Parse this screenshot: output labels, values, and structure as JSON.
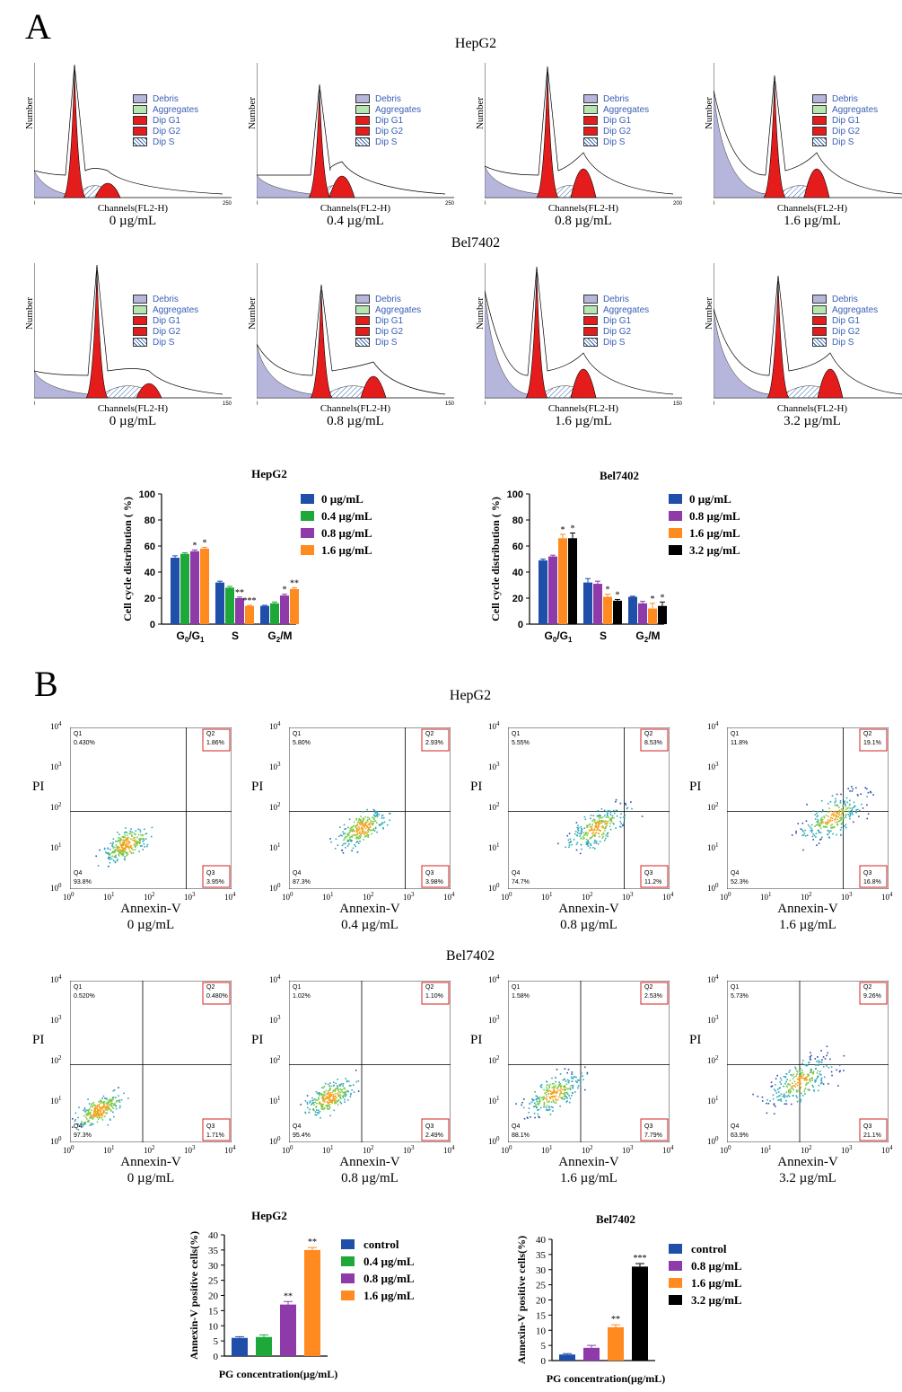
{
  "panelA": {
    "letter": "A",
    "rows": [
      {
        "title": "HepG2",
        "histograms": [
          {
            "caption": "0 µg/mL",
            "xlabel": "Channels(FL2-H)",
            "ylabel": "Number",
            "xmax_tick": "250"
          },
          {
            "caption": "0.4 µg/mL",
            "xlabel": "Channels(FL2-H)",
            "ylabel": "Number",
            "xmax_tick": "250"
          },
          {
            "caption": "0.8 µg/mL",
            "xlabel": "Channels(FL2-H)",
            "ylabel": "Number",
            "xmax_tick": "200"
          },
          {
            "caption": "1.6 µg/mL",
            "xlabel": "Channels(FL2-H)",
            "ylabel": "Number",
            "xmax_tick": "150"
          }
        ]
      },
      {
        "title": "Bel7402",
        "histograms": [
          {
            "caption": "0 µg/mL",
            "xlabel": "Channels(FL2-H)",
            "ylabel": "Number",
            "xmax_tick": "150"
          },
          {
            "caption": "0.8 µg/mL",
            "xlabel": "Channels(FL2-H)",
            "ylabel": "Number",
            "xmax_tick": "150"
          },
          {
            "caption": "1.6 µg/mL",
            "xlabel": "Channels(FL2-H)",
            "ylabel": "Number",
            "xmax_tick": "150"
          },
          {
            "caption": "3.2 µg/mL",
            "xlabel": "Channels(FL2-H)",
            "ylabel": "Number",
            "xmax_tick": "150"
          }
        ]
      }
    ],
    "legend": [
      "Debris",
      "Aggregates",
      "Dip G1",
      "Dip G2",
      "Dip S"
    ]
  },
  "panelB": {
    "letter": "B",
    "rows": [
      {
        "title": "HepG2",
        "plots": [
          {
            "caption": "0 µg/mL",
            "q1": "0.430%",
            "q2": "1.86%",
            "q3": "3.95%",
            "q4": "93.8%"
          },
          {
            "caption": "0.4 µg/mL",
            "q1": "5.80%",
            "q2": "2.93%",
            "q3": "3.98%",
            "q4": "87.3%"
          },
          {
            "caption": "0.8 µg/mL",
            "q1": "5.55%",
            "q2": "8.53%",
            "q3": "11.2%",
            "q4": "74.7%"
          },
          {
            "caption": "1.6 µg/mL",
            "q1": "11.8%",
            "q2": "19.1%",
            "q3": "16.8%",
            "q4": "52.3%"
          }
        ]
      },
      {
        "title": "Bel7402",
        "plots": [
          {
            "caption": "0 µg/mL",
            "q1": "0.520%",
            "q2": "0.480%",
            "q3": "1.71%",
            "q4": "97.3%"
          },
          {
            "caption": "0.8 µg/mL",
            "q1": "1.02%",
            "q2": "1.10%",
            "q3": "2.49%",
            "q4": "95.4%"
          },
          {
            "caption": "1.6 µg/mL",
            "q1": "1.58%",
            "q2": "2.53%",
            "q3": "7.79%",
            "q4": "88.1%"
          },
          {
            "caption": "3.2 µg/mL",
            "q1": "5.73%",
            "q2": "9.26%",
            "q3": "21.1%",
            "q4": "63.9%"
          }
        ]
      }
    ],
    "xlabel": "Annexin-V",
    "ylabel": "PI",
    "quadrant_names": [
      "Q1",
      "Q2",
      "Q3",
      "Q4"
    ],
    "ticks": [
      "10",
      "10",
      "10",
      "10",
      "10"
    ],
    "tick_exps": [
      "0",
      "1",
      "2",
      "3",
      "4"
    ]
  },
  "chart_data": [
    {
      "type": "bar",
      "title": "HepG2",
      "ylabel": "Cell cycle distribution ( %)",
      "ylim": [
        0,
        100
      ],
      "yticks": [
        "0",
        "20",
        "40",
        "60",
        "80",
        "100"
      ],
      "categories": [
        "G0/G1",
        "S",
        "G2/M"
      ],
      "series": [
        {
          "name": "0 µg/mL",
          "values": [
            51,
            32,
            14
          ],
          "err": [
            1.5,
            1,
            0.5
          ],
          "color": "#1f4fa8",
          "sig": [
            "",
            "",
            ""
          ]
        },
        {
          "name": "0.4 µg/mL",
          "values": [
            54,
            28,
            16
          ],
          "err": [
            0.8,
            1,
            1
          ],
          "color": "#1fa83a",
          "sig": [
            "",
            "",
            ""
          ]
        },
        {
          "name": "0.8 µg/mL",
          "values": [
            56,
            20,
            22
          ],
          "err": [
            1,
            0.8,
            1
          ],
          "color": "#8e3aa8",
          "sig": [
            "*",
            "**",
            "*"
          ]
        },
        {
          "name": "1.6 µg/mL",
          "values": [
            58,
            14,
            27
          ],
          "err": [
            1,
            0.5,
            1
          ],
          "color": "#ff8a1f",
          "sig": [
            "*",
            "***",
            "**"
          ]
        }
      ]
    },
    {
      "type": "bar",
      "title": "Bel7402",
      "ylabel": "Cell cycle distribution ( %)",
      "ylim": [
        0,
        100
      ],
      "yticks": [
        "0",
        "20",
        "40",
        "60",
        "80",
        "100"
      ],
      "categories": [
        "G0/G1",
        "S",
        "G2/M"
      ],
      "series": [
        {
          "name": "0 µg/mL",
          "values": [
            49,
            32,
            21
          ],
          "err": [
            1,
            3,
            0.5
          ],
          "color": "#1f4fa8",
          "sig": [
            "",
            "",
            ""
          ]
        },
        {
          "name": "0.8 µg/mL",
          "values": [
            52,
            31,
            16
          ],
          "err": [
            1,
            2,
            1.5
          ],
          "color": "#8e3aa8",
          "sig": [
            "",
            "",
            ""
          ]
        },
        {
          "name": "1.6 µg/mL",
          "values": [
            66,
            21,
            12
          ],
          "err": [
            3,
            2,
            4
          ],
          "color": "#ff8a1f",
          "sig": [
            "*",
            "*",
            "*"
          ]
        },
        {
          "name": "3.2 µg/mL",
          "values": [
            66,
            18,
            14
          ],
          "err": [
            4,
            1,
            3
          ],
          "color": "#000000",
          "sig": [
            "*",
            "*",
            "*"
          ]
        }
      ]
    },
    {
      "type": "bar",
      "title": "HepG2",
      "ylabel": "Annexin-V positive cells(%)",
      "xlabel": "PG concentration(µg/mL)",
      "ylim": [
        0,
        40
      ],
      "yticks": [
        "0",
        "5",
        "10",
        "15",
        "20",
        "25",
        "30",
        "35",
        "40"
      ],
      "categories": [
        "control",
        "0.4 µg/mL",
        "0.8 µg/mL",
        "1.6 µg/mL"
      ],
      "values": [
        6,
        6.3,
        17,
        35
      ],
      "err": [
        0.4,
        0.7,
        1,
        0.8
      ],
      "colors": [
        "#1f4fa8",
        "#1fa83a",
        "#8e3aa8",
        "#ff8a1f"
      ],
      "sig": [
        "",
        "",
        "**",
        "**"
      ]
    },
    {
      "type": "bar",
      "title": "Bel7402",
      "ylabel": "Annexin-V positive cells(%)",
      "xlabel": "PG concentration(µg/mL)",
      "ylim": [
        0,
        40
      ],
      "yticks": [
        "0",
        "5",
        "10",
        "15",
        "20",
        "25",
        "30",
        "35",
        "40"
      ],
      "categories": [
        "control",
        "0.8 µg/mL",
        "1.6 µg/mL",
        "3.2 µg/mL"
      ],
      "values": [
        2,
        4.2,
        11,
        31
      ],
      "err": [
        0.3,
        0.8,
        0.8,
        1
      ],
      "colors": [
        "#1f4fa8",
        "#8e3aa8",
        "#ff8a1f",
        "#000000"
      ],
      "sig": [
        "",
        "",
        "**",
        "***"
      ]
    }
  ],
  "legend_colors": {
    "debris": "#b6b6dc",
    "aggregates": "#b6e6b0",
    "g1": "#e51c1c",
    "g2": "#e51c1c",
    "s": "#ffffff"
  }
}
